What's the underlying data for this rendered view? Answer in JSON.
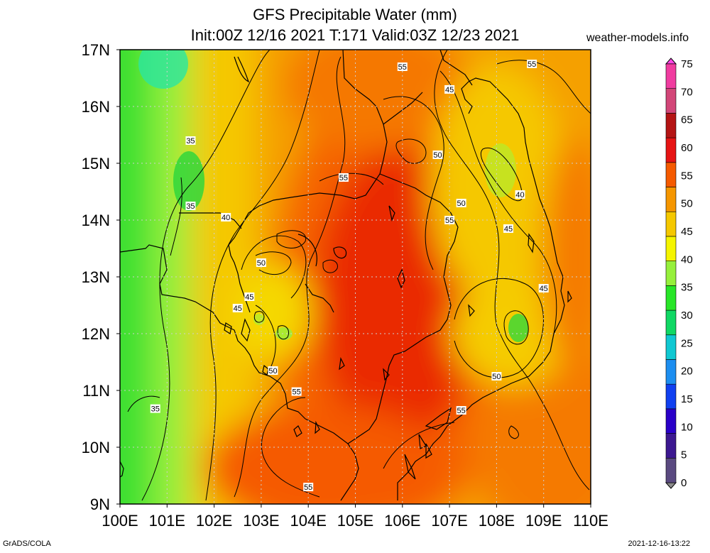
{
  "title": {
    "line1": "GFS Precipitable Water (mm)",
    "line2": "Init:00Z 12/16 2021 T:171 Valid:03Z 12/23 2021"
  },
  "source": "weather-models.info",
  "footer": {
    "software": "GrADS/COLA",
    "timestamp": "2021-12-16-13:22"
  },
  "map": {
    "lon_range": [
      100,
      110
    ],
    "lat_range": [
      9,
      17
    ],
    "lon_ticks": [
      "100E",
      "101E",
      "102E",
      "103E",
      "104E",
      "105E",
      "106E",
      "107E",
      "108E",
      "109E",
      "110E"
    ],
    "lat_ticks": [
      "9N",
      "10N",
      "11N",
      "12N",
      "13N",
      "14N",
      "15N",
      "16N",
      "17N"
    ],
    "contour_labels": [
      {
        "value": "55",
        "lon": 106.0,
        "lat": 16.7
      },
      {
        "value": "55",
        "lon": 108.75,
        "lat": 16.75
      },
      {
        "value": "45",
        "lon": 107.0,
        "lat": 16.3
      },
      {
        "value": "35",
        "lon": 101.5,
        "lat": 15.4
      },
      {
        "value": "50",
        "lon": 106.75,
        "lat": 15.15
      },
      {
        "value": "55",
        "lon": 104.75,
        "lat": 14.75
      },
      {
        "value": "40",
        "lon": 108.5,
        "lat": 14.45
      },
      {
        "value": "35",
        "lon": 101.5,
        "lat": 14.25
      },
      {
        "value": "50",
        "lon": 107.25,
        "lat": 14.3
      },
      {
        "value": "40",
        "lon": 102.25,
        "lat": 14.05
      },
      {
        "value": "55",
        "lon": 107.0,
        "lat": 14.0
      },
      {
        "value": "45",
        "lon": 108.25,
        "lat": 13.85
      },
      {
        "value": "50",
        "lon": 103.0,
        "lat": 13.25
      },
      {
        "value": "45",
        "lon": 109.0,
        "lat": 12.8
      },
      {
        "value": "45",
        "lon": 102.75,
        "lat": 12.65
      },
      {
        "value": "45",
        "lon": 102.5,
        "lat": 12.45
      },
      {
        "value": "50",
        "lon": 103.25,
        "lat": 11.35
      },
      {
        "value": "50",
        "lon": 108.0,
        "lat": 11.25
      },
      {
        "value": "55",
        "lon": 103.75,
        "lat": 10.98
      },
      {
        "value": "35",
        "lon": 100.75,
        "lat": 10.68
      },
      {
        "value": "55",
        "lon": 107.25,
        "lat": 10.65
      },
      {
        "value": "55",
        "lon": 104.0,
        "lat": 9.3
      }
    ]
  },
  "colorbar": {
    "labels": [
      "0",
      "5",
      "10",
      "15",
      "20",
      "25",
      "30",
      "35",
      "40",
      "45",
      "50",
      "55",
      "60",
      "65",
      "70",
      "75"
    ],
    "colors": [
      "#8c8c8c",
      "#5a4a80",
      "#3c1890",
      "#2a00c8",
      "#1040f0",
      "#1c8ef0",
      "#10c8d2",
      "#10d864",
      "#28e628",
      "#96f03c",
      "#f5f500",
      "#f5c800",
      "#f59600",
      "#f55a00",
      "#e61414",
      "#b41414",
      "#d24678",
      "#f03ca0",
      "#ff46e6"
    ]
  }
}
